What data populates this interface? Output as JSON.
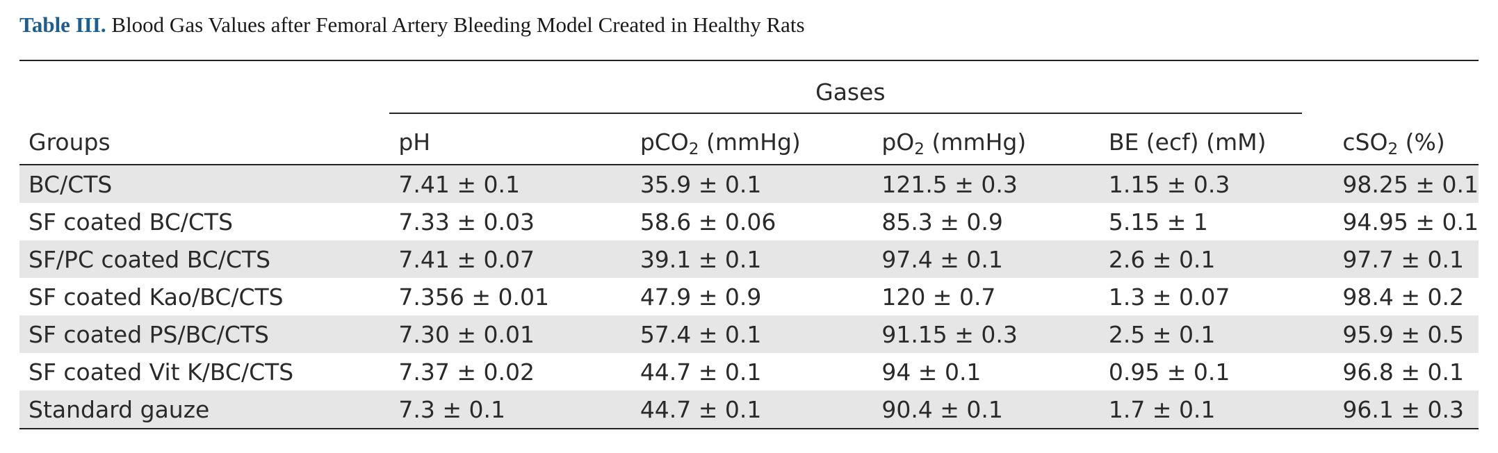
{
  "caption": {
    "label": "Table III.",
    "title": "Blood Gas Values after Femoral Artery Bleeding Model Created in Healthy Rats"
  },
  "table": {
    "group_header": "Gases",
    "columns": {
      "groups": "Groups",
      "ph": "pH",
      "pco2": {
        "pre": "pCO",
        "sub": "2",
        "post": " (mmHg)"
      },
      "po2": {
        "pre": "pO",
        "sub": "2",
        "post": " (mmHg)"
      },
      "be": "BE (ecf) (mM)",
      "cso2": {
        "pre": "cSO",
        "sub": "2",
        "post": " (%)"
      }
    },
    "rows": [
      {
        "group": "BC/CTS",
        "ph": "7.41 ± 0.1",
        "pco2": "35.9 ± 0.1",
        "po2": "121.5 ± 0.3",
        "be": "1.15 ± 0.3",
        "cso2": "98.25 ± 0.1"
      },
      {
        "group": "SF coated BC/CTS",
        "ph": "7.33 ± 0.03",
        "pco2": "58.6 ± 0.06",
        "po2": "85.3 ± 0.9",
        "be": "5.15 ± 1",
        "cso2": "94.95 ± 0.1"
      },
      {
        "group": "SF/PC coated BC/CTS",
        "ph": "7.41 ± 0.07",
        "pco2": "39.1 ± 0.1",
        "po2": "97.4 ± 0.1",
        "be": "2.6 ± 0.1",
        "cso2": "97.7 ± 0.1"
      },
      {
        "group": "SF coated Kao/BC/CTS",
        "ph": "7.356 ± 0.01",
        "pco2": "47.9 ± 0.9",
        "po2": "120 ± 0.7",
        "be": "1.3 ± 0.07",
        "cso2": "98.4 ± 0.2"
      },
      {
        "group": "SF coated PS/BC/CTS",
        "ph": "7.30 ± 0.01",
        "pco2": "57.4 ± 0.1",
        "po2": "91.15 ± 0.3",
        "be": "2.5 ± 0.1",
        "cso2": "95.9 ± 0.5"
      },
      {
        "group": "SF coated Vit K/BC/CTS",
        "ph": "7.37 ± 0.02",
        "pco2": "44.7 ± 0.1",
        "po2": "94 ± 0.1",
        "be": "0.95 ± 0.1",
        "cso2": "96.8 ± 0.1"
      },
      {
        "group": "Standard gauze",
        "ph": "7.3 ± 0.1",
        "pco2": "44.7 ± 0.1",
        "po2": "90.4 ± 0.1",
        "be": "1.7 ± 0.1",
        "cso2": "96.1 ± 0.3"
      }
    ]
  }
}
